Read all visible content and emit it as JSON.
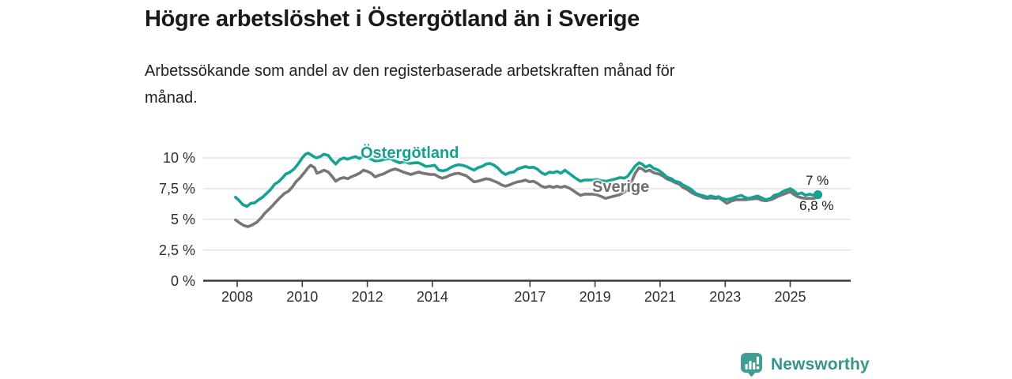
{
  "header": {
    "title": "Högre arbetslöshet i Östergötland än i Sverige",
    "subtitle": "Arbetssökande som andel av den registerbaserade arbetskraften månad för\nmånad."
  },
  "footer": {
    "brand": "Newsworthy",
    "logo_icon": "bar-chart-pin-icon"
  },
  "colors": {
    "teal_line": "#14a393",
    "gray_line": "#767676",
    "teal_label": "#12a192",
    "gray_label": "#6e6e6e",
    "axis": "#3a3a3a",
    "grid": "#dcdcdc",
    "text": "#1a1a1a",
    "brand_text": "#35958b",
    "logo": "#3f9e94"
  },
  "chart_data": {
    "type": "line",
    "title": "Högre arbetslöshet i Östergötland än i Sverige",
    "subtitle": "Arbetssökande som andel av den registerbaserade arbetskraften månad för månad.",
    "unit": "%",
    "grid": true,
    "legend_position": "inline-labels",
    "x_axis": {
      "range": [
        2007.0,
        2026.9
      ],
      "ticks": [
        2008,
        2010,
        2012,
        2014,
        2017,
        2019,
        2021,
        2023,
        2025
      ],
      "tick_labels": [
        "2008",
        "2010",
        "2012",
        "2014",
        "2017",
        "2019",
        "2021",
        "2023",
        "2025"
      ]
    },
    "y_axis": {
      "range": [
        0,
        11
      ],
      "ticks": [
        0,
        2.5,
        5,
        7.5,
        10
      ],
      "tick_labels": [
        "0 %",
        "2,5 %",
        "5 %",
        "7,5 %",
        "10 %"
      ]
    },
    "series": [
      {
        "name": "Östergötland",
        "color": "#14a393",
        "end_label": "7 %",
        "end_dot": true,
        "points": [
          [
            2007.95,
            6.8
          ],
          [
            2008.05,
            6.55
          ],
          [
            2008.17,
            6.2
          ],
          [
            2008.3,
            6.05
          ],
          [
            2008.42,
            6.3
          ],
          [
            2008.54,
            6.35
          ],
          [
            2008.66,
            6.6
          ],
          [
            2008.78,
            6.8
          ],
          [
            2008.9,
            7.1
          ],
          [
            2009.02,
            7.4
          ],
          [
            2009.15,
            7.85
          ],
          [
            2009.27,
            8.05
          ],
          [
            2009.4,
            8.4
          ],
          [
            2009.5,
            8.7
          ],
          [
            2009.6,
            8.8
          ],
          [
            2009.75,
            9.1
          ],
          [
            2009.87,
            9.5
          ],
          [
            2010.0,
            10.0
          ],
          [
            2010.1,
            10.3
          ],
          [
            2010.18,
            10.4
          ],
          [
            2010.3,
            10.2
          ],
          [
            2010.43,
            10.0
          ],
          [
            2010.55,
            10.1
          ],
          [
            2010.67,
            10.3
          ],
          [
            2010.8,
            10.2
          ],
          [
            2010.9,
            9.85
          ],
          [
            2011.03,
            9.5
          ],
          [
            2011.15,
            9.85
          ],
          [
            2011.27,
            10.0
          ],
          [
            2011.4,
            9.9
          ],
          [
            2011.5,
            10.0
          ],
          [
            2011.64,
            10.1
          ],
          [
            2011.76,
            9.95
          ],
          [
            2011.88,
            10.2
          ],
          [
            2012.0,
            10.05
          ],
          [
            2012.12,
            9.9
          ],
          [
            2012.24,
            9.75
          ],
          [
            2012.4,
            9.8
          ],
          [
            2012.55,
            9.9
          ],
          [
            2012.7,
            9.95
          ],
          [
            2012.85,
            9.75
          ],
          [
            2013.0,
            9.6
          ],
          [
            2013.15,
            9.7
          ],
          [
            2013.3,
            9.55
          ],
          [
            2013.45,
            9.6
          ],
          [
            2013.58,
            9.6
          ],
          [
            2013.7,
            9.45
          ],
          [
            2013.8,
            9.3
          ],
          [
            2013.95,
            9.35
          ],
          [
            2014.07,
            9.4
          ],
          [
            2014.2,
            9.0
          ],
          [
            2014.32,
            8.95
          ],
          [
            2014.43,
            9.0
          ],
          [
            2014.55,
            9.2
          ],
          [
            2014.67,
            9.35
          ],
          [
            2014.8,
            9.45
          ],
          [
            2014.92,
            9.4
          ],
          [
            2015.05,
            9.3
          ],
          [
            2015.16,
            9.15
          ],
          [
            2015.28,
            9.0
          ],
          [
            2015.4,
            9.2
          ],
          [
            2015.52,
            9.3
          ],
          [
            2015.65,
            9.5
          ],
          [
            2015.77,
            9.55
          ],
          [
            2015.9,
            9.4
          ],
          [
            2016.0,
            9.2
          ],
          [
            2016.13,
            8.85
          ],
          [
            2016.25,
            8.65
          ],
          [
            2016.37,
            8.8
          ],
          [
            2016.5,
            8.85
          ],
          [
            2016.62,
            9.1
          ],
          [
            2016.74,
            9.2
          ],
          [
            2016.86,
            9.3
          ],
          [
            2016.98,
            9.2
          ],
          [
            2017.1,
            9.25
          ],
          [
            2017.22,
            9.1
          ],
          [
            2017.35,
            8.8
          ],
          [
            2017.47,
            8.65
          ],
          [
            2017.6,
            8.85
          ],
          [
            2017.71,
            8.8
          ],
          [
            2017.83,
            8.9
          ],
          [
            2017.95,
            8.75
          ],
          [
            2018.07,
            9.0
          ],
          [
            2018.2,
            8.75
          ],
          [
            2018.3,
            8.55
          ],
          [
            2018.43,
            8.3
          ],
          [
            2018.55,
            8.1
          ],
          [
            2018.68,
            8.2
          ],
          [
            2018.8,
            8.2
          ],
          [
            2018.92,
            8.2
          ],
          [
            2019.04,
            8.25
          ],
          [
            2019.2,
            8.15
          ],
          [
            2019.35,
            8.1
          ],
          [
            2019.5,
            8.2
          ],
          [
            2019.65,
            8.3
          ],
          [
            2019.77,
            8.4
          ],
          [
            2019.9,
            8.35
          ],
          [
            2020.0,
            8.5
          ],
          [
            2020.1,
            8.85
          ],
          [
            2020.22,
            9.3
          ],
          [
            2020.35,
            9.6
          ],
          [
            2020.45,
            9.5
          ],
          [
            2020.55,
            9.25
          ],
          [
            2020.68,
            9.4
          ],
          [
            2020.8,
            9.15
          ],
          [
            2020.95,
            9.0
          ],
          [
            2021.1,
            8.7
          ],
          [
            2021.2,
            8.45
          ],
          [
            2021.35,
            8.3
          ],
          [
            2021.45,
            8.1
          ],
          [
            2021.6,
            8.0
          ],
          [
            2021.7,
            7.8
          ],
          [
            2021.85,
            7.6
          ],
          [
            2021.95,
            7.45
          ],
          [
            2022.1,
            7.1
          ],
          [
            2022.2,
            7.0
          ],
          [
            2022.35,
            6.9
          ],
          [
            2022.45,
            6.8
          ],
          [
            2022.55,
            6.9
          ],
          [
            2022.7,
            6.8
          ],
          [
            2022.8,
            6.85
          ],
          [
            2022.9,
            6.7
          ],
          [
            2023.05,
            6.6
          ],
          [
            2023.2,
            6.7
          ],
          [
            2023.35,
            6.85
          ],
          [
            2023.5,
            6.95
          ],
          [
            2023.6,
            6.8
          ],
          [
            2023.72,
            6.7
          ],
          [
            2023.85,
            6.8
          ],
          [
            2024.0,
            6.9
          ],
          [
            2024.12,
            6.75
          ],
          [
            2024.25,
            6.6
          ],
          [
            2024.4,
            6.7
          ],
          [
            2024.5,
            6.95
          ],
          [
            2024.65,
            7.05
          ],
          [
            2024.8,
            7.3
          ],
          [
            2024.9,
            7.4
          ],
          [
            2025.0,
            7.5
          ],
          [
            2025.12,
            7.3
          ],
          [
            2025.22,
            7.05
          ],
          [
            2025.35,
            7.15
          ],
          [
            2025.47,
            6.95
          ],
          [
            2025.6,
            7.05
          ],
          [
            2025.72,
            6.95
          ],
          [
            2025.85,
            7.0
          ]
        ]
      },
      {
        "name": "Sverige",
        "color": "#767676",
        "end_label": "6,8 %",
        "end_dot": false,
        "points": [
          [
            2007.95,
            4.95
          ],
          [
            2008.05,
            4.75
          ],
          [
            2008.2,
            4.5
          ],
          [
            2008.33,
            4.4
          ],
          [
            2008.47,
            4.55
          ],
          [
            2008.6,
            4.75
          ],
          [
            2008.73,
            5.1
          ],
          [
            2008.85,
            5.5
          ],
          [
            2008.97,
            5.8
          ],
          [
            2009.1,
            6.15
          ],
          [
            2009.2,
            6.45
          ],
          [
            2009.33,
            6.8
          ],
          [
            2009.45,
            7.1
          ],
          [
            2009.58,
            7.3
          ],
          [
            2009.7,
            7.65
          ],
          [
            2009.82,
            8.1
          ],
          [
            2009.94,
            8.4
          ],
          [
            2010.06,
            8.8
          ],
          [
            2010.18,
            9.2
          ],
          [
            2010.26,
            9.4
          ],
          [
            2010.38,
            9.2
          ],
          [
            2010.45,
            8.75
          ],
          [
            2010.55,
            8.85
          ],
          [
            2010.67,
            9.0
          ],
          [
            2010.8,
            8.85
          ],
          [
            2010.9,
            8.55
          ],
          [
            2011.03,
            8.1
          ],
          [
            2011.15,
            8.3
          ],
          [
            2011.27,
            8.4
          ],
          [
            2011.4,
            8.3
          ],
          [
            2011.5,
            8.45
          ],
          [
            2011.64,
            8.6
          ],
          [
            2011.76,
            8.75
          ],
          [
            2011.88,
            9.0
          ],
          [
            2012.0,
            8.9
          ],
          [
            2012.12,
            8.75
          ],
          [
            2012.24,
            8.45
          ],
          [
            2012.37,
            8.6
          ],
          [
            2012.5,
            8.7
          ],
          [
            2012.6,
            8.85
          ],
          [
            2012.73,
            9.0
          ],
          [
            2012.85,
            9.1
          ],
          [
            2012.97,
            9.0
          ],
          [
            2013.1,
            8.85
          ],
          [
            2013.22,
            8.75
          ],
          [
            2013.34,
            8.65
          ],
          [
            2013.46,
            8.75
          ],
          [
            2013.58,
            8.85
          ],
          [
            2013.7,
            8.75
          ],
          [
            2013.82,
            8.7
          ],
          [
            2013.95,
            8.65
          ],
          [
            2014.07,
            8.65
          ],
          [
            2014.2,
            8.45
          ],
          [
            2014.3,
            8.35
          ],
          [
            2014.43,
            8.45
          ],
          [
            2014.55,
            8.6
          ],
          [
            2014.67,
            8.7
          ],
          [
            2014.8,
            8.75
          ],
          [
            2014.92,
            8.65
          ],
          [
            2015.04,
            8.55
          ],
          [
            2015.16,
            8.3
          ],
          [
            2015.28,
            8.05
          ],
          [
            2015.4,
            8.1
          ],
          [
            2015.52,
            8.2
          ],
          [
            2015.65,
            8.3
          ],
          [
            2015.77,
            8.25
          ],
          [
            2015.9,
            8.1
          ],
          [
            2016.0,
            8.0
          ],
          [
            2016.13,
            7.8
          ],
          [
            2016.25,
            7.7
          ],
          [
            2016.37,
            7.8
          ],
          [
            2016.5,
            7.95
          ],
          [
            2016.62,
            8.05
          ],
          [
            2016.74,
            8.1
          ],
          [
            2016.86,
            8.2
          ],
          [
            2016.98,
            8.05
          ],
          [
            2017.1,
            8.1
          ],
          [
            2017.22,
            7.95
          ],
          [
            2017.35,
            7.7
          ],
          [
            2017.47,
            7.6
          ],
          [
            2017.6,
            7.7
          ],
          [
            2017.71,
            7.6
          ],
          [
            2017.83,
            7.7
          ],
          [
            2017.95,
            7.6
          ],
          [
            2018.07,
            7.7
          ],
          [
            2018.2,
            7.55
          ],
          [
            2018.3,
            7.4
          ],
          [
            2018.43,
            7.15
          ],
          [
            2018.55,
            6.95
          ],
          [
            2018.68,
            7.05
          ],
          [
            2018.8,
            7.05
          ],
          [
            2018.92,
            7.05
          ],
          [
            2019.05,
            7.0
          ],
          [
            2019.2,
            6.85
          ],
          [
            2019.32,
            6.7
          ],
          [
            2019.45,
            6.8
          ],
          [
            2019.6,
            6.9
          ],
          [
            2019.75,
            7.0
          ],
          [
            2019.9,
            7.2
          ],
          [
            2020.0,
            7.4
          ],
          [
            2020.1,
            7.9
          ],
          [
            2020.22,
            8.7
          ],
          [
            2020.35,
            9.2
          ],
          [
            2020.45,
            9.1
          ],
          [
            2020.55,
            8.9
          ],
          [
            2020.68,
            9.0
          ],
          [
            2020.8,
            8.8
          ],
          [
            2020.95,
            8.7
          ],
          [
            2021.1,
            8.5
          ],
          [
            2021.2,
            8.3
          ],
          [
            2021.35,
            8.15
          ],
          [
            2021.45,
            8.0
          ],
          [
            2021.6,
            7.85
          ],
          [
            2021.7,
            7.6
          ],
          [
            2021.85,
            7.4
          ],
          [
            2021.95,
            7.2
          ],
          [
            2022.1,
            7.0
          ],
          [
            2022.2,
            6.9
          ],
          [
            2022.35,
            6.75
          ],
          [
            2022.45,
            6.7
          ],
          [
            2022.55,
            6.75
          ],
          [
            2022.7,
            6.7
          ],
          [
            2022.8,
            6.75
          ],
          [
            2022.9,
            6.6
          ],
          [
            2023.05,
            6.3
          ],
          [
            2023.2,
            6.5
          ],
          [
            2023.35,
            6.6
          ],
          [
            2023.5,
            6.6
          ],
          [
            2023.65,
            6.6
          ],
          [
            2023.8,
            6.65
          ],
          [
            2024.0,
            6.7
          ],
          [
            2024.12,
            6.55
          ],
          [
            2024.25,
            6.5
          ],
          [
            2024.4,
            6.6
          ],
          [
            2024.5,
            6.7
          ],
          [
            2024.65,
            6.9
          ],
          [
            2024.8,
            7.05
          ],
          [
            2024.9,
            7.15
          ],
          [
            2025.0,
            7.25
          ],
          [
            2025.12,
            7.0
          ],
          [
            2025.22,
            6.85
          ],
          [
            2025.35,
            6.75
          ],
          [
            2025.47,
            6.7
          ],
          [
            2025.6,
            6.7
          ],
          [
            2025.72,
            6.7
          ],
          [
            2025.85,
            6.8
          ]
        ]
      }
    ]
  }
}
